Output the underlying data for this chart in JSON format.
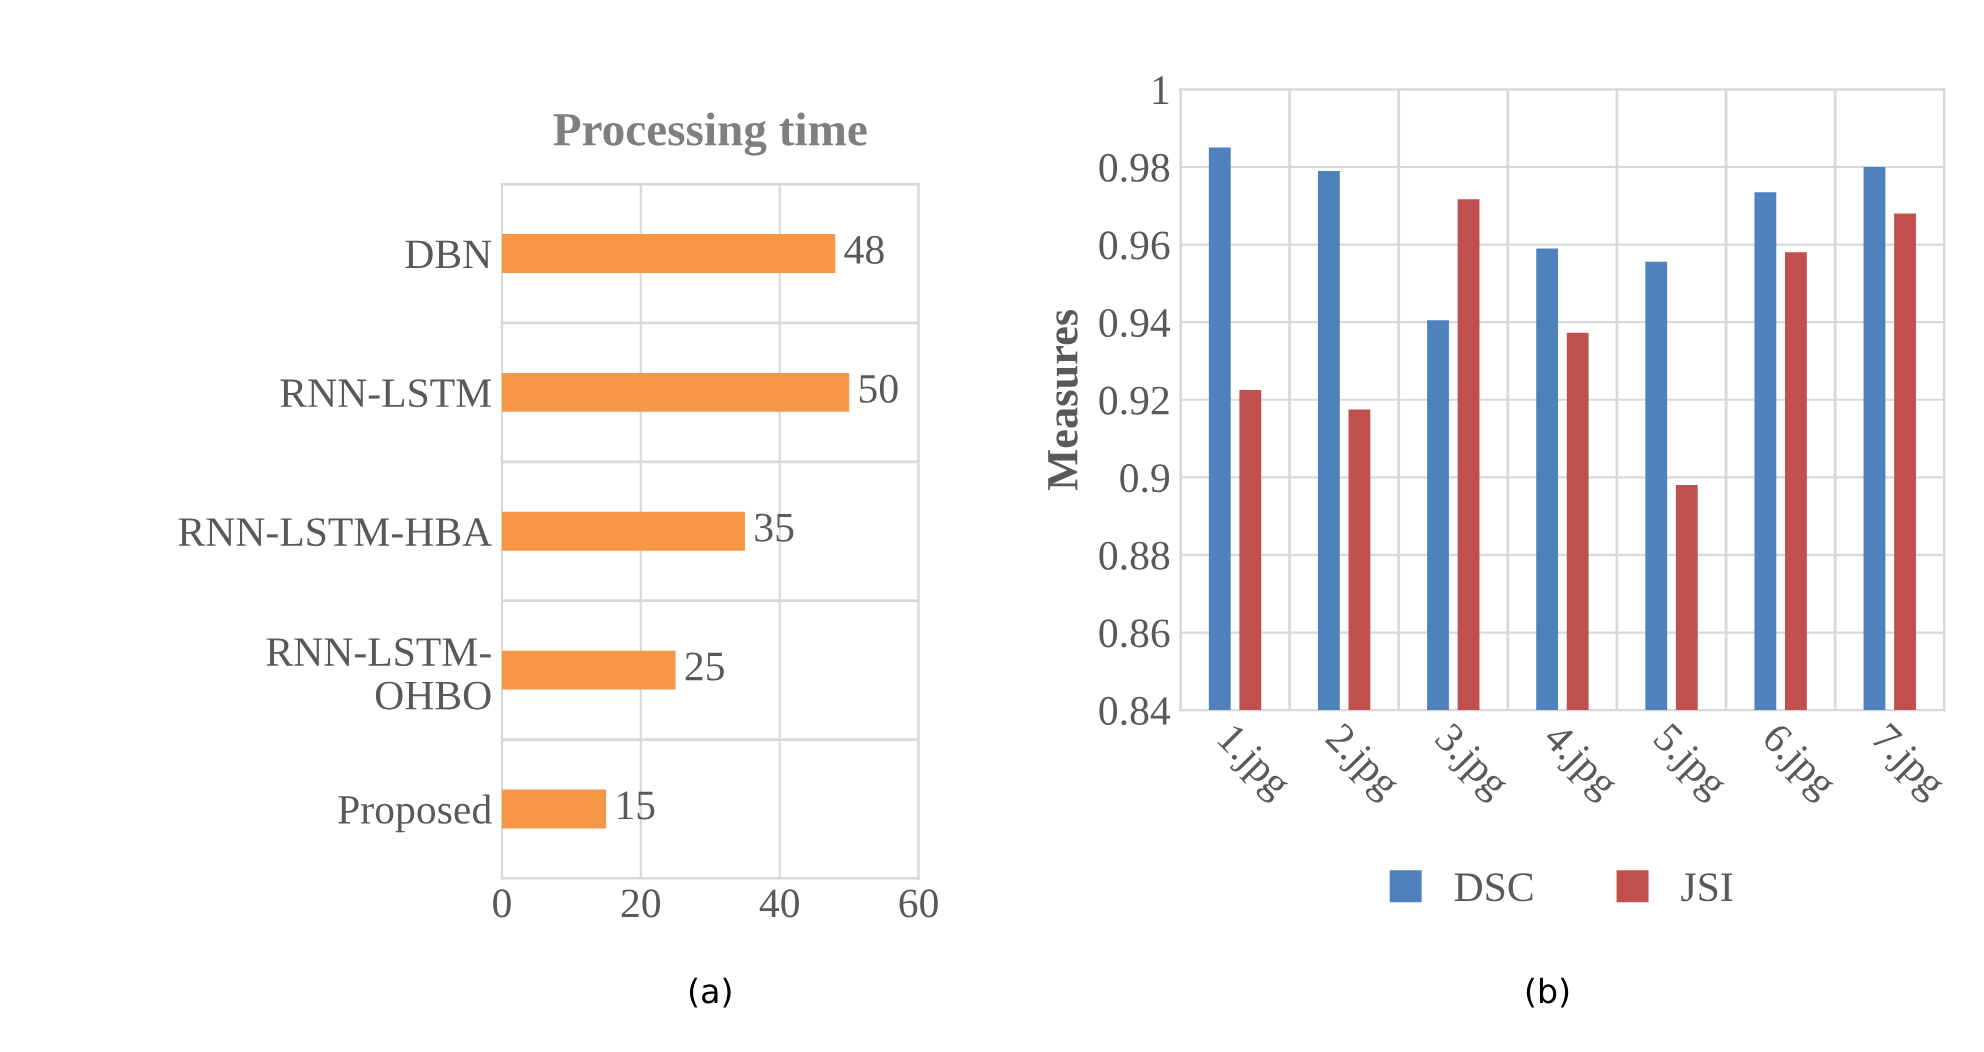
{
  "chart_data": [
    {
      "type": "bar",
      "title": "Processing time",
      "orientation": "horizontal",
      "categories": [
        "DBN",
        "RNN-LSTM",
        "RNN-LSTM-HBA",
        "RNN-LSTM-\nOHBO",
        "Proposed"
      ],
      "values": [
        48,
        50,
        35,
        25,
        15
      ],
      "color": "#f79646",
      "data_labels": true,
      "xlim": [
        0,
        60
      ],
      "xticks": [
        0,
        20,
        40,
        60
      ],
      "grid": true,
      "annotations": [
        "(a)"
      ]
    },
    {
      "type": "bar",
      "ylabel": "Measures",
      "categories": [
        "1.jpg",
        "2.jpg",
        "3.jpg",
        "4.jpg",
        "5.jpg",
        "6.jpg",
        "7.jpg"
      ],
      "series": [
        {
          "name": "DSC",
          "color": "#4f81bd",
          "values": [
            0.985,
            0.979,
            0.9405,
            0.959,
            0.9556,
            0.9735,
            0.98
          ]
        },
        {
          "name": "JSI",
          "color": "#c0504d",
          "values": [
            0.9225,
            0.9175,
            0.9717,
            0.9373,
            0.898,
            0.958,
            0.968
          ]
        }
      ],
      "ylim": [
        0.84,
        1
      ],
      "yticks": [
        0.84,
        0.86,
        0.88,
        0.9,
        0.92,
        0.94,
        0.96,
        0.98,
        1
      ],
      "grid": true,
      "legend": "bottom",
      "annotations": [
        "(b)"
      ]
    }
  ]
}
